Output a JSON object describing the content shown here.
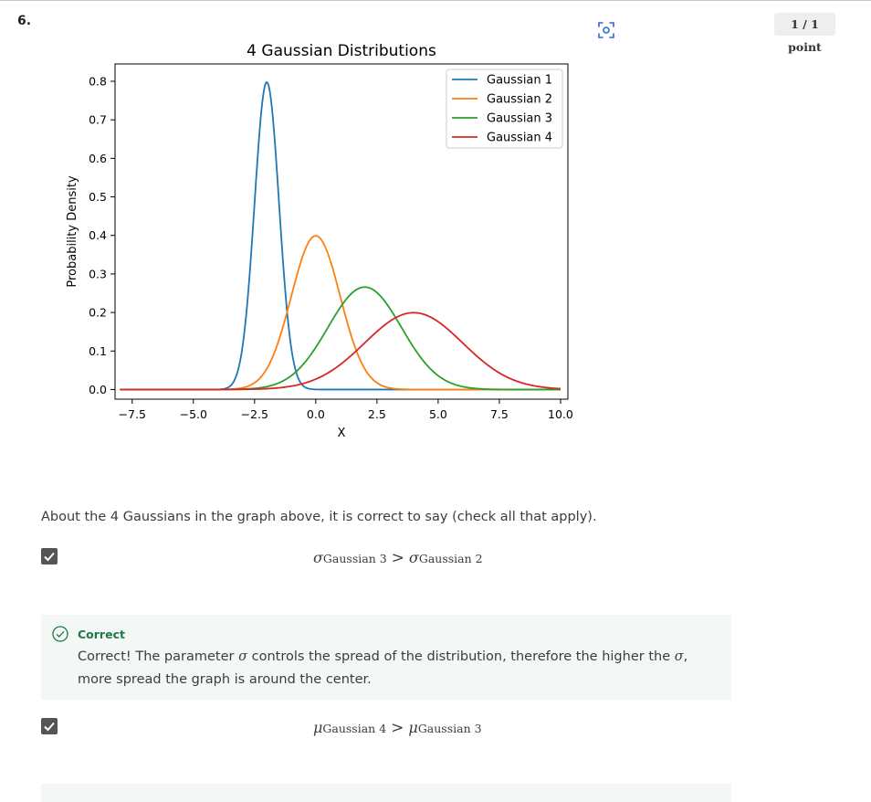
{
  "question": {
    "number": "6.",
    "score": "1 / 1 point",
    "prompt": "About the 4 Gaussians in the graph above, it is correct to say (check all that apply)."
  },
  "chart_data": {
    "type": "line",
    "title": "4 Gaussian Distributions",
    "xlabel": "X",
    "ylabel": "Probability Density",
    "xlim": [
      -8.2,
      10.3
    ],
    "ylim": [
      -0.025,
      0.845
    ],
    "xticks": [
      -7.5,
      -5.0,
      -2.5,
      0.0,
      2.5,
      5.0,
      7.5,
      10.0
    ],
    "xtick_labels": [
      "−7.5",
      "−5.0",
      "−2.5",
      "0.0",
      "2.5",
      "5.0",
      "7.5",
      "10.0"
    ],
    "yticks": [
      0.0,
      0.1,
      0.2,
      0.3,
      0.4,
      0.5,
      0.6,
      0.7,
      0.8
    ],
    "ytick_labels": [
      "0.0",
      "0.1",
      "0.2",
      "0.3",
      "0.4",
      "0.5",
      "0.6",
      "0.7",
      "0.8"
    ],
    "legend_position": "top-right",
    "x_range": [
      -8,
      10
    ],
    "series": [
      {
        "name": "Gaussian 1",
        "mu": -2.0,
        "sigma": 0.5,
        "color": "#1f77b4"
      },
      {
        "name": "Gaussian 2",
        "mu": 0.0,
        "sigma": 1.0,
        "color": "#ff7f0e"
      },
      {
        "name": "Gaussian 3",
        "mu": 2.0,
        "sigma": 1.5,
        "color": "#2ca02c"
      },
      {
        "name": "Gaussian 4",
        "mu": 4.0,
        "sigma": 2.0,
        "color": "#d62728"
      }
    ]
  },
  "options": [
    {
      "checked": true,
      "lhs_symbol": "σ",
      "lhs_subscript": "Gaussian 3",
      "operator": ">",
      "rhs_symbol": "σ",
      "rhs_subscript": "Gaussian 2",
      "feedback": {
        "title": "Correct",
        "text_before": "Correct! The parameter ",
        "symbol1": "σ",
        "text_middle": " controls the spread of the distribution, therefore the higher the ",
        "symbol2": "σ",
        "text_after": ", more spread the graph is around the center."
      }
    },
    {
      "checked": true,
      "lhs_symbol": "μ",
      "lhs_subscript": "Gaussian 4",
      "operator": ">",
      "rhs_symbol": "μ",
      "rhs_subscript": "Gaussian 3"
    }
  ],
  "colors": {
    "correct_green": "#1d7a46",
    "feedback_bg": "#f3f8f6",
    "checkbox": "#555555"
  }
}
